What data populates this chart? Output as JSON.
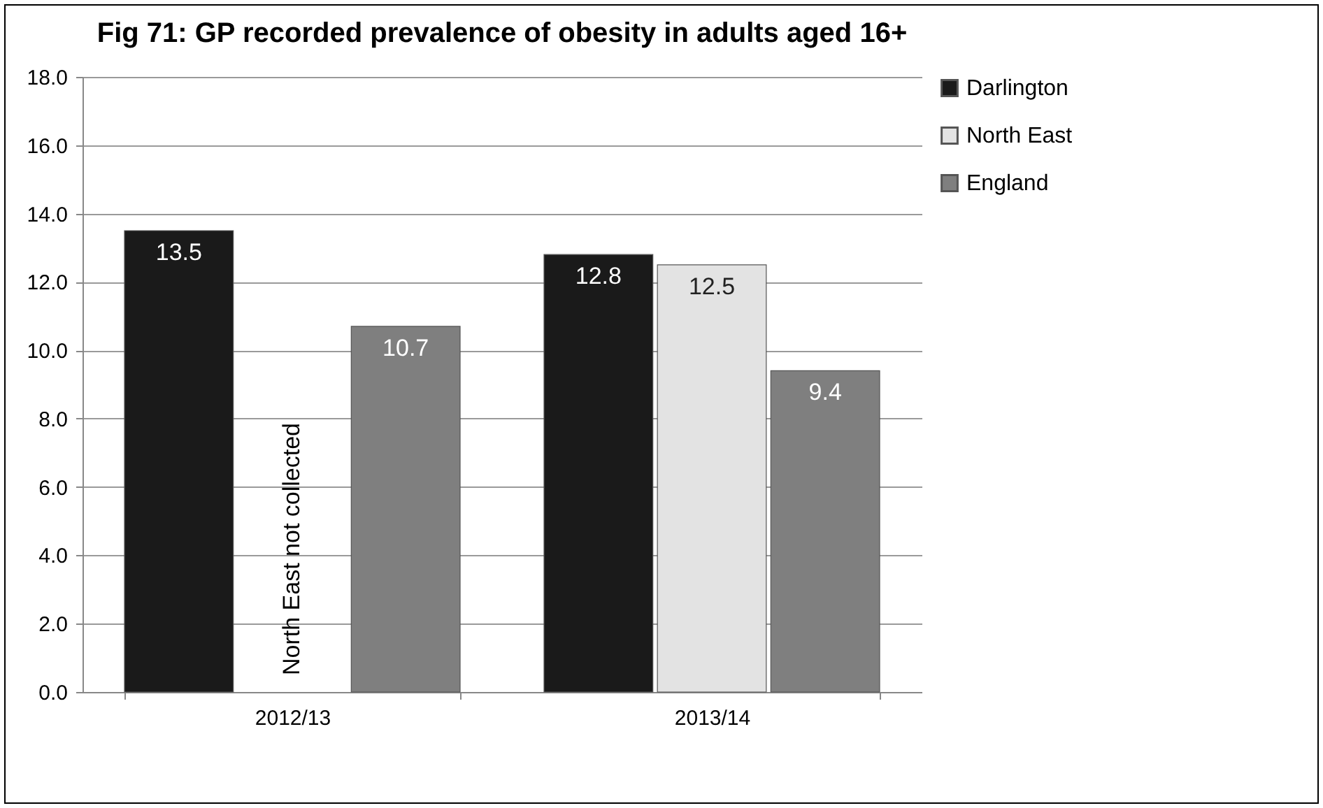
{
  "chart_data": {
    "type": "bar",
    "title": "Fig 71: GP recorded prevalence of obesity in adults aged 16+",
    "categories": [
      "2012/13",
      "2013/14"
    ],
    "series": [
      {
        "name": "Darlington",
        "color": "#1a1a1a",
        "values": [
          13.5,
          12.8
        ]
      },
      {
        "name": "North East",
        "color": "#e3e3e3",
        "values": [
          null,
          12.5
        ]
      },
      {
        "name": "England",
        "color": "#7f7f7f",
        "values": [
          10.7,
          9.4
        ]
      }
    ],
    "ylim": [
      0,
      18
    ],
    "yticks": [
      {
        "value": 0,
        "label": "0.0"
      },
      {
        "value": 2,
        "label": "2.0"
      },
      {
        "value": 4,
        "label": "4.0"
      },
      {
        "value": 6,
        "label": "6.0"
      },
      {
        "value": 8,
        "label": "8.0"
      },
      {
        "value": 10,
        "label": "10.0"
      },
      {
        "value": 12,
        "label": "12.0"
      },
      {
        "value": 14,
        "label": "14.0"
      },
      {
        "value": 16,
        "label": "16.0"
      },
      {
        "value": 18,
        "label": "18.0"
      }
    ],
    "grid": "y",
    "legend": "right",
    "data_labels": true,
    "annotations": [
      "North East not collected"
    ]
  }
}
